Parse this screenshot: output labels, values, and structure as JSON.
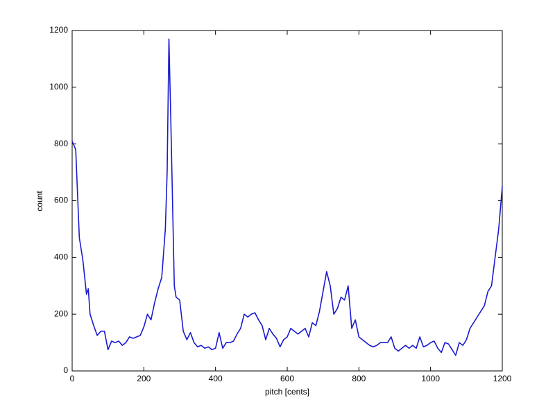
{
  "chart_data": {
    "type": "line",
    "xlabel": "pitch [cents]",
    "ylabel": "count",
    "x": [
      0,
      10,
      20,
      30,
      40,
      45,
      50,
      60,
      70,
      80,
      90,
      100,
      110,
      120,
      130,
      140,
      150,
      160,
      170,
      180,
      190,
      200,
      210,
      220,
      230,
      240,
      250,
      260,
      265,
      270,
      275,
      280,
      285,
      290,
      300,
      310,
      320,
      330,
      340,
      350,
      360,
      370,
      380,
      390,
      400,
      410,
      420,
      430,
      440,
      450,
      460,
      470,
      480,
      490,
      500,
      510,
      520,
      530,
      540,
      550,
      560,
      570,
      580,
      590,
      600,
      610,
      620,
      630,
      640,
      650,
      660,
      670,
      680,
      690,
      700,
      710,
      720,
      730,
      740,
      750,
      760,
      770,
      780,
      790,
      800,
      810,
      820,
      830,
      840,
      850,
      860,
      870,
      880,
      890,
      900,
      910,
      920,
      930,
      940,
      950,
      960,
      970,
      980,
      990,
      1000,
      1010,
      1020,
      1030,
      1040,
      1050,
      1060,
      1070,
      1080,
      1090,
      1100,
      1110,
      1120,
      1130,
      1140,
      1150,
      1160,
      1170,
      1180,
      1190,
      1200
    ],
    "series": [
      {
        "color": "#1a1ad0",
        "values": [
          810,
          780,
          470,
          390,
          270,
          290,
          200,
          160,
          125,
          140,
          140,
          75,
          105,
          100,
          105,
          90,
          100,
          120,
          115,
          120,
          125,
          155,
          200,
          180,
          240,
          290,
          330,
          500,
          700,
          1170,
          900,
          600,
          300,
          260,
          250,
          140,
          110,
          135,
          100,
          85,
          90,
          80,
          85,
          75,
          80,
          135,
          80,
          100,
          100,
          105,
          130,
          150,
          200,
          190,
          200,
          205,
          180,
          160,
          110,
          150,
          130,
          115,
          85,
          110,
          120,
          150,
          140,
          130,
          140,
          150,
          120,
          170,
          160,
          210,
          280,
          350,
          300,
          200,
          220,
          260,
          250,
          300,
          150,
          180,
          120,
          110,
          100,
          90,
          85,
          90,
          100,
          100,
          100,
          120,
          80,
          70,
          80,
          90,
          80,
          90,
          80,
          120,
          85,
          90,
          100,
          105,
          80,
          65,
          100,
          95,
          75,
          55,
          100,
          90,
          110,
          150,
          170,
          190,
          210,
          230,
          280,
          300,
          400,
          500,
          650
        ]
      }
    ],
    "xlim": [
      0,
      1200
    ],
    "ylim": [
      0,
      1200
    ],
    "xticks": [
      0,
      200,
      400,
      600,
      800,
      1000,
      1200
    ],
    "yticks": [
      0,
      200,
      400,
      600,
      800,
      1000,
      1200
    ],
    "grid": false
  }
}
